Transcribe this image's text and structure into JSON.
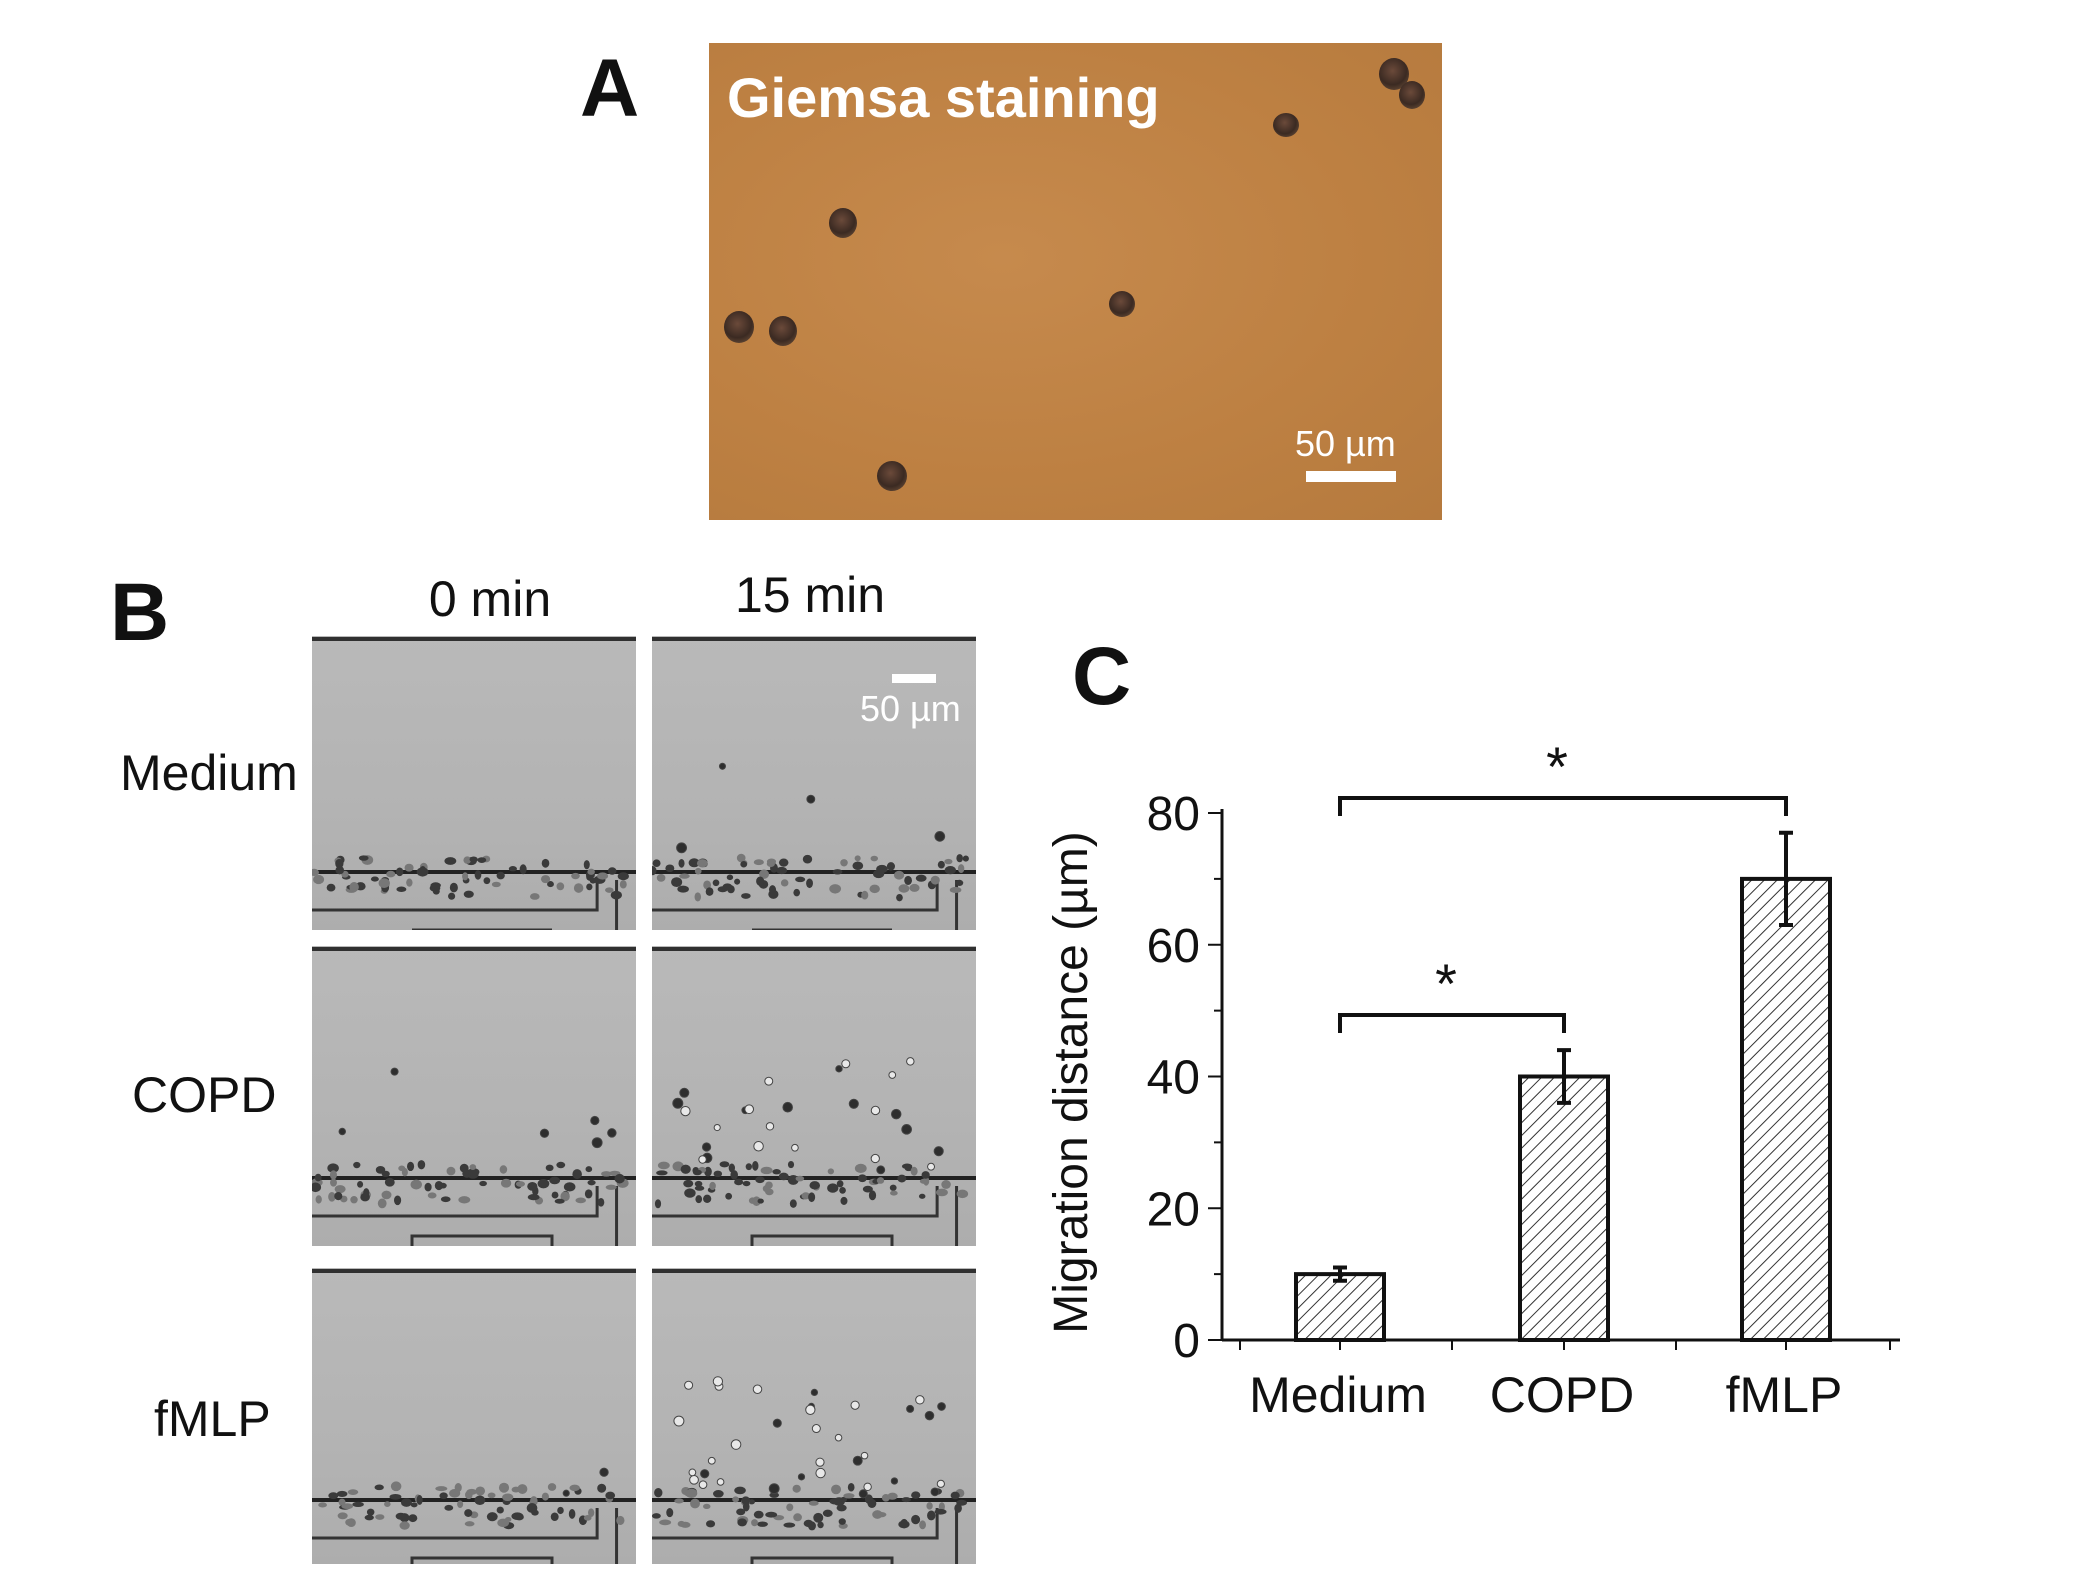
{
  "panel_a": {
    "letter": "A",
    "title": "Giemsa staining",
    "scale_label": "50 µm"
  },
  "panel_b": {
    "letter": "B",
    "time_labels": [
      "0 min",
      "15 min"
    ],
    "row_labels": [
      "Medium",
      "COPD",
      "fMLP"
    ],
    "scale_label": "50 µm"
  },
  "panel_c": {
    "letter": "C"
  },
  "chart_data": {
    "type": "bar",
    "categories": [
      "Medium",
      "COPD",
      "fMLP"
    ],
    "values": [
      10,
      40,
      70
    ],
    "errors": [
      1,
      4,
      7
    ],
    "ylabel": "Migration distance (µm)",
    "xlabel": "",
    "ylim": [
      0,
      80
    ],
    "yticks": [
      0,
      20,
      40,
      60,
      80
    ],
    "bar_fill": "hatched",
    "significance": [
      {
        "from": "Medium",
        "to": "COPD",
        "label": "*"
      },
      {
        "from": "Medium",
        "to": "fMLP",
        "label": "*"
      }
    ]
  }
}
